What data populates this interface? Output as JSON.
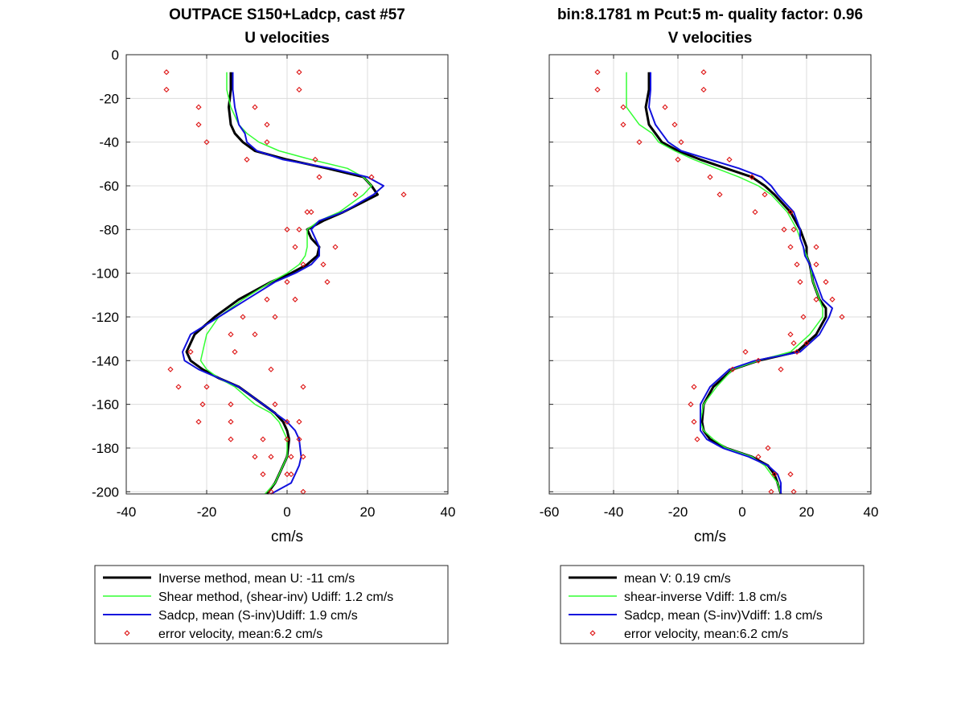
{
  "chart_data": [
    {
      "type": "line",
      "title": "OUTPACE S150+Ladcp, cast #57",
      "subtitle": "U velocities",
      "xlabel": "cm/s",
      "ylabel": "",
      "xlim": [
        -40,
        40
      ],
      "ylim": [
        -201,
        0
      ],
      "xticks": [
        -40,
        -20,
        0,
        20,
        40
      ],
      "yticks": [
        0,
        -20,
        -40,
        -60,
        -80,
        -100,
        -120,
        -140,
        -160,
        -180,
        -200
      ],
      "grid": true,
      "legend_position": "below",
      "series": [
        {
          "name": "Inverse method, mean U:  -11 cm/s",
          "color": "#000000",
          "style": "line",
          "width": 3,
          "x": [
            -14,
            -14,
            -14.5,
            -14,
            -13,
            -11,
            -8,
            0,
            10,
            19,
            21,
            22.5,
            14,
            9,
            5,
            6,
            8,
            7.5,
            5,
            1,
            -4,
            -12,
            -18,
            -23,
            -25,
            -24,
            -21,
            -17,
            -12,
            -6,
            -3,
            -1,
            0,
            0.5,
            0,
            -1,
            -2,
            -3,
            -5
          ],
          "y": [
            -8,
            -16,
            -24,
            -32,
            -36,
            -40,
            -44,
            -48,
            -52,
            -56,
            -60,
            -64,
            -72,
            -76,
            -80,
            -84,
            -88,
            -92,
            -96,
            -100,
            -104,
            -112,
            -120,
            -128,
            -136,
            -140,
            -144,
            -148,
            -152,
            -160,
            -164,
            -168,
            -172,
            -176,
            -184,
            -188,
            -192,
            -196,
            -201
          ]
        },
        {
          "name": "Shear method, (shear-inv)  Udiff:  1.2 cm/s",
          "color": "#33ff33",
          "style": "line",
          "width": 1.5,
          "x": [
            -15,
            -15,
            -14,
            -12,
            -10,
            -7,
            -2,
            6,
            15,
            19,
            21,
            19,
            13,
            8,
            5,
            5,
            5,
            4.5,
            3,
            0,
            -4,
            -11,
            -17,
            -20,
            -21,
            -21.5,
            -20,
            -17,
            -13,
            -8,
            -4,
            -2,
            -1,
            0,
            0,
            -1,
            -2,
            -3,
            -5.5
          ],
          "y": [
            -8,
            -16,
            -24,
            -32,
            -36,
            -40,
            -44,
            -48,
            -52,
            -56,
            -60,
            -64,
            -72,
            -76,
            -80,
            -84,
            -88,
            -92,
            -96,
            -100,
            -104,
            -112,
            -120,
            -128,
            -136,
            -140,
            -144,
            -148,
            -152,
            -160,
            -164,
            -168,
            -172,
            -176,
            -184,
            -188,
            -192,
            -196,
            -201
          ]
        },
        {
          "name": "Sadcp, mean (S-inv)Udiff: 1.9 cm/s",
          "color": "#1111dd",
          "style": "line",
          "width": 2,
          "x": [
            -13.5,
            -13.5,
            -13,
            -12,
            -10.5,
            -10,
            -7.5,
            -1,
            11,
            20,
            24,
            21.5,
            14,
            8,
            6,
            7,
            8,
            8,
            6,
            2,
            -3,
            -10,
            -17,
            -24,
            -26,
            -25.5,
            -22,
            -17,
            -12,
            -6,
            -3,
            0,
            2,
            3,
            3.5,
            3,
            2,
            1,
            -4
          ],
          "y": [
            -8,
            -16,
            -24,
            -32,
            -36,
            -40,
            -44,
            -48,
            -52,
            -56,
            -60,
            -64,
            -72,
            -76,
            -80,
            -84,
            -88,
            -92,
            -96,
            -100,
            -104,
            -112,
            -120,
            -128,
            -136,
            -140,
            -144,
            -148,
            -152,
            -160,
            -164,
            -168,
            -172,
            -176,
            -184,
            -188,
            -192,
            -196,
            -201
          ]
        },
        {
          "name": "error velocity, mean:6.2 cm/s",
          "color": "#dd1111",
          "style": "markers",
          "x": [
            -30,
            3,
            -30,
            3,
            -22,
            -8,
            -22,
            -5,
            -20,
            -5,
            -10,
            7,
            8,
            21,
            17,
            29,
            6,
            5,
            0,
            3,
            12,
            2,
            9,
            4,
            10,
            0,
            2,
            -5,
            -3,
            -11,
            -14,
            -8,
            -24,
            -13,
            -29,
            -4,
            -27,
            -20,
            -21,
            -14,
            -22,
            -14,
            -6,
            -14,
            -8,
            1,
            1,
            -6,
            -4,
            4,
            -3,
            4,
            0,
            3,
            0,
            3,
            -4,
            4,
            0
          ],
          "y": [
            -8,
            -8,
            -16,
            -16,
            -24,
            -24,
            -32,
            -32,
            -40,
            -40,
            -48,
            -48,
            -56,
            -56,
            -64,
            -64,
            -72,
            -72,
            -80,
            -80,
            -88,
            -88,
            -96,
            -96,
            -104,
            -104,
            -112,
            -112,
            -120,
            -120,
            -128,
            -128,
            -136,
            -136,
            -144,
            -144,
            -152,
            -152,
            -160,
            -160,
            -168,
            -168,
            -176,
            -176,
            -184,
            -184,
            -192,
            -192,
            -200,
            -200,
            -160,
            -152,
            -168,
            -168,
            -176,
            -176,
            -184,
            -184,
            -192
          ]
        }
      ]
    },
    {
      "type": "line",
      "title": "bin:8.1781 m  Pcut:5 m- quality factor:  0.96",
      "subtitle": "V velocities",
      "xlabel": "cm/s",
      "ylabel": "",
      "xlim": [
        -60,
        40
      ],
      "ylim": [
        -201,
        0
      ],
      "xticks": [
        -60,
        -40,
        -20,
        0,
        20,
        40
      ],
      "yticks": [
        0,
        -20,
        -40,
        -60,
        -80,
        -100,
        -120,
        -140,
        -160,
        -180,
        -200
      ],
      "show_ytick_labels": false,
      "grid": true,
      "legend_position": "below",
      "series": [
        {
          "name": "mean V:  0.19 cm/s",
          "color": "#000000",
          "style": "line",
          "width": 3,
          "x": [
            -29,
            -29,
            -30,
            -29,
            -27,
            -25,
            -20,
            -13,
            -5,
            3,
            7,
            10,
            15,
            18,
            19,
            20,
            20,
            21,
            22,
            24,
            26,
            26,
            23,
            17,
            5,
            -3,
            -9,
            -12,
            -12.5,
            -12,
            -10,
            -5,
            3,
            8,
            10,
            11,
            12
          ],
          "y": [
            -8,
            -16,
            -24,
            -32,
            -36,
            -40,
            -44,
            -48,
            -52,
            -56,
            -60,
            -64,
            -72,
            -80,
            -84,
            -88,
            -92,
            -96,
            -104,
            -112,
            -116,
            -120,
            -128,
            -136,
            -140,
            -144,
            -152,
            -160,
            -168,
            -172,
            -176,
            -180,
            -184,
            -188,
            -192,
            -196,
            -201
          ]
        },
        {
          "name": "shear-inverse Vdiff:  1.8 cm/s",
          "color": "#33ff33",
          "style": "line",
          "width": 1.5,
          "x": [
            -36,
            -36,
            -36,
            -32,
            -28,
            -26,
            -21,
            -15,
            -8,
            -1,
            5,
            9,
            14,
            17,
            18,
            19,
            20,
            21,
            22,
            24,
            25,
            25,
            21,
            15,
            5,
            -3,
            -8,
            -12,
            -13,
            -12,
            -9,
            -5,
            3,
            7,
            9,
            11,
            12
          ],
          "y": [
            -8,
            -16,
            -24,
            -32,
            -36,
            -40,
            -44,
            -48,
            -52,
            -56,
            -60,
            -64,
            -72,
            -80,
            -84,
            -88,
            -92,
            -96,
            -104,
            -112,
            -116,
            -120,
            -128,
            -136,
            -140,
            -144,
            -152,
            -160,
            -168,
            -172,
            -176,
            -180,
            -184,
            -188,
            -192,
            -196,
            -201
          ]
        },
        {
          "name": "Sadcp, mean (S-inv)Vdiff: 1.8 cm/s",
          "color": "#1111dd",
          "style": "line",
          "width": 2,
          "x": [
            -28.5,
            -28.5,
            -29,
            -27,
            -25,
            -23,
            -19,
            -10,
            -1,
            6,
            9,
            11,
            16,
            18,
            18,
            19,
            19.5,
            21,
            23,
            25,
            28,
            27,
            24,
            18,
            4,
            -4,
            -10,
            -13,
            -13,
            -13,
            -11,
            -6,
            2,
            8,
            11,
            12,
            12
          ],
          "y": [
            -8,
            -16,
            -24,
            -32,
            -36,
            -40,
            -44,
            -48,
            -52,
            -56,
            -60,
            -64,
            -72,
            -80,
            -84,
            -88,
            -92,
            -96,
            -104,
            -112,
            -116,
            -120,
            -128,
            -136,
            -140,
            -144,
            -152,
            -160,
            -168,
            -172,
            -176,
            -180,
            -184,
            -188,
            -192,
            -196,
            -201
          ]
        },
        {
          "name": "error velocity, mean:6.2 cm/s",
          "color": "#dd1111",
          "style": "markers",
          "x": [
            -45,
            -12,
            -45,
            -12,
            -37,
            -24,
            -37,
            -21,
            -32,
            -19,
            -20,
            -4,
            -10,
            3,
            -7,
            7,
            4,
            15,
            13,
            16,
            15,
            23,
            17,
            23,
            18,
            26,
            28,
            23,
            31,
            19,
            15,
            16,
            17,
            20,
            1,
            5,
            -3,
            12,
            -15,
            -16,
            -15,
            -14,
            8,
            5,
            15,
            10,
            9,
            16
          ],
          "y": [
            -8,
            -8,
            -16,
            -16,
            -24,
            -24,
            -32,
            -32,
            -40,
            -40,
            -48,
            -48,
            -56,
            -56,
            -64,
            -64,
            -72,
            -72,
            -80,
            -80,
            -88,
            -88,
            -96,
            -96,
            -104,
            -104,
            -112,
            -112,
            -120,
            -120,
            -128,
            -132,
            -136,
            -132,
            -136,
            -140,
            -144,
            -144,
            -152,
            -160,
            -168,
            -176,
            -180,
            -184,
            -192,
            -192,
            -200,
            -200
          ]
        }
      ]
    }
  ]
}
